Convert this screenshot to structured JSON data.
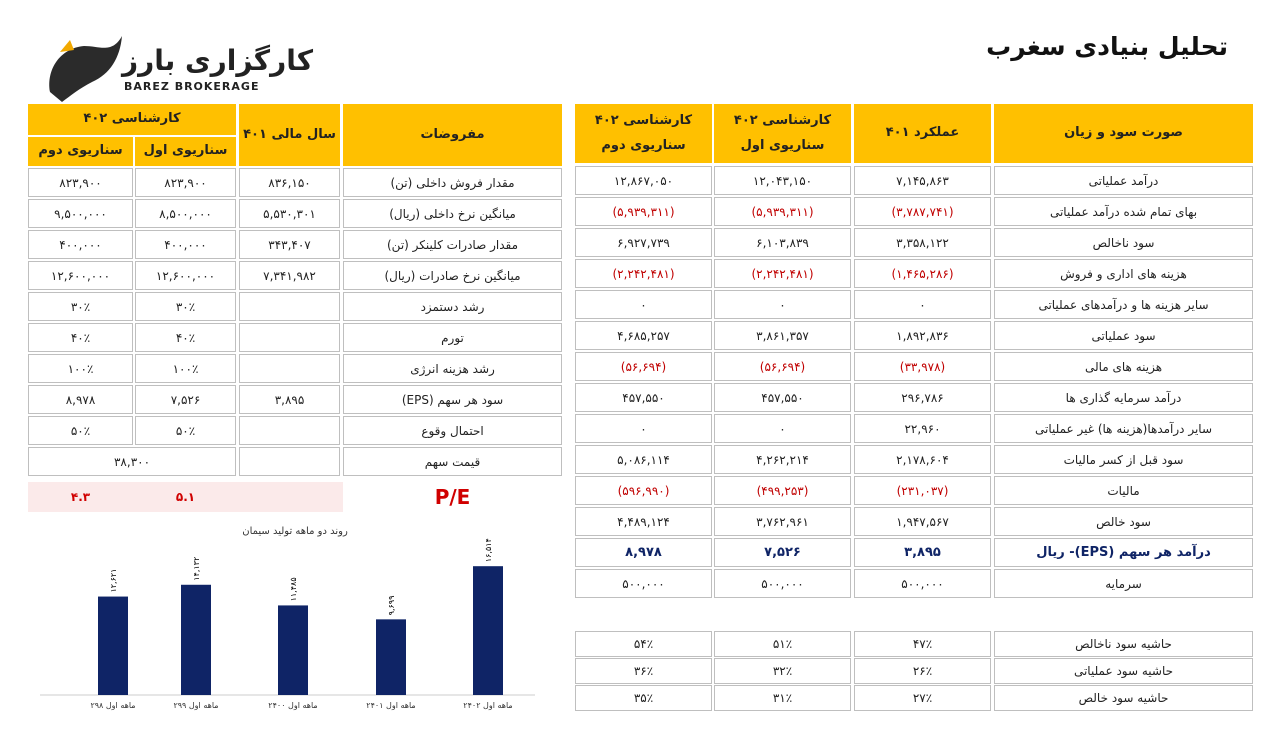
{
  "header": {
    "title": "تحلیل بنیادی سغرب",
    "logo": "کارگزاری بارز",
    "logo_en": "BAREZ BROKERAGE"
  },
  "income": {
    "headers": [
      "صورت سود و زیان",
      "عملکرد ۴۰۱",
      [
        "کارشناسی ۴۰۲",
        "سناریوی اول"
      ],
      [
        "کارشناسی ۴۰۲",
        "سناریوی دوم"
      ]
    ],
    "rows": [
      [
        "درآمد عملیاتی",
        "۷,۱۴۵,۸۶۳",
        "۱۲,۰۴۳,۱۵۰",
        "۱۲,۸۶۷,۰۵۰"
      ],
      [
        "بهای تمام شده درآمد عملیاتی",
        "(۳,۷۸۷,۷۴۱)",
        "(۵,۹۳۹,۳۱۱)",
        "(۵,۹۳۹,۳۱۱)"
      ],
      [
        "سود ناخالص",
        "۳,۳۵۸,۱۲۲",
        "۶,۱۰۳,۸۳۹",
        "۶,۹۲۷,۷۳۹"
      ],
      [
        "هزینه های اداری و فروش",
        "(۱,۴۶۵,۲۸۶)",
        "(۲,۲۴۲,۴۸۱)",
        "(۲,۲۴۲,۴۸۱)"
      ],
      [
        "سایر هزینه ها و درآمدهای عملیاتی",
        "۰",
        "۰",
        "۰"
      ],
      [
        "سود عملیاتی",
        "۱,۸۹۲,۸۳۶",
        "۳,۸۶۱,۳۵۷",
        "۴,۶۸۵,۲۵۷"
      ],
      [
        "هزینه های مالی",
        "(۳۳,۹۷۸)",
        "(۵۶,۶۹۴)",
        "(۵۶,۶۹۴)"
      ],
      [
        "درآمد سرمایه گذاری ها",
        "۲۹۶,۷۸۶",
        "۴۵۷,۵۵۰",
        "۴۵۷,۵۵۰"
      ],
      [
        "سایر درآمدها(هزینه ها) غیر عملیاتی",
        "۲۲,۹۶۰",
        "۰",
        "۰"
      ],
      [
        "سود قبل از کسر مالیات",
        "۲,۱۷۸,۶۰۴",
        "۴,۲۶۲,۲۱۴",
        "۵,۰۸۶,۱۱۴"
      ],
      [
        "مالیات",
        "(۲۳۱,۰۳۷)",
        "(۴۹۹,۲۵۳)",
        "(۵۹۶,۹۹۰)"
      ],
      [
        "سود خالص",
        "۱,۹۴۷,۵۶۷",
        "۳,۷۶۲,۹۶۱",
        "۴,۴۸۹,۱۲۴"
      ],
      [
        "درآمد هر سهم (EPS)- ریال",
        "۳,۸۹۵",
        "۷,۵۲۶",
        "۸,۹۷۸"
      ],
      [
        "سرمایه",
        "۵۰۰,۰۰۰",
        "۵۰۰,۰۰۰",
        "۵۰۰,۰۰۰"
      ]
    ],
    "margins": [
      [
        "حاشیه سود ناخالص",
        "۴۷٪",
        "۵۱٪",
        "۵۴٪"
      ],
      [
        "حاشیه سود عملیاتی",
        "۲۶٪",
        "۳۲٪",
        "۳۶٪"
      ],
      [
        "حاشیه سود خالص",
        "۲۷٪",
        "۳۱٪",
        "۳۵٪"
      ]
    ]
  },
  "assumptions": {
    "headers": {
      "label": "مفروضات",
      "fy": "سال مالی ۴۰۱",
      "expert": "کارشناسی ۴۰۲",
      "s1": "سناریوی اول",
      "s2": "سناریوی دوم"
    },
    "rows": [
      [
        "مقدار فروش داخلی (تن)",
        "۸۳۶,۱۵۰",
        "۸۲۳,۹۰۰",
        "۸۲۳,۹۰۰"
      ],
      [
        "میانگین نرخ داخلی (ریال)",
        "۵,۵۳۰,۳۰۱",
        "۸,۵۰۰,۰۰۰",
        "۹,۵۰۰,۰۰۰"
      ],
      [
        "مقدار صادرات کلینکر (تن)",
        "۳۴۳,۴۰۷",
        "۴۰۰,۰۰۰",
        "۴۰۰,۰۰۰"
      ],
      [
        "میانگین نرخ صادرات (ریال)",
        "۷,۳۴۱,۹۸۲",
        "۱۲,۶۰۰,۰۰۰",
        "۱۲,۶۰۰,۰۰۰"
      ],
      [
        "رشد دستمزد",
        null,
        "۳۰٪",
        "۳۰٪"
      ],
      [
        "تورم",
        null,
        "۴۰٪",
        "۴۰٪"
      ],
      [
        "رشد هزینه انرژی",
        null,
        "۱۰۰٪",
        "۱۰۰٪"
      ],
      [
        "سود هر سهم (EPS)",
        "۳,۸۹۵",
        "۷,۵۲۶",
        "۸,۹۷۸"
      ],
      [
        "احتمال وقوع",
        null,
        "۵۰٪",
        "۵۰٪"
      ],
      [
        "قیمت سهم",
        null,
        "۳۸,۳۰۰"
      ]
    ],
    "pe": {
      "label": "P/E",
      "s1": "۵.۱",
      "s2": "۴.۳"
    }
  },
  "chart": {
    "type": "bar",
    "title": "روند دو ماهه تولید سیمان",
    "color": "#0f2466",
    "categories": [
      "۲ماهه اول ۹۸",
      "۲ماهه اول ۹۹",
      "۲ماهه اول ۴۰۰",
      "۲ماهه اول ۴۰۱",
      "۲ماهه اول ۴۰۲"
    ],
    "values": [
      12621,
      14132,
      11485,
      9699,
      16514
    ],
    "value_labels": [
      "۱۲,۶۲۱",
      "۱۴,۱۳۲",
      "۱۱,۴۸۵",
      "۹,۶۹۹",
      "۱۶,۵۱۴"
    ]
  }
}
